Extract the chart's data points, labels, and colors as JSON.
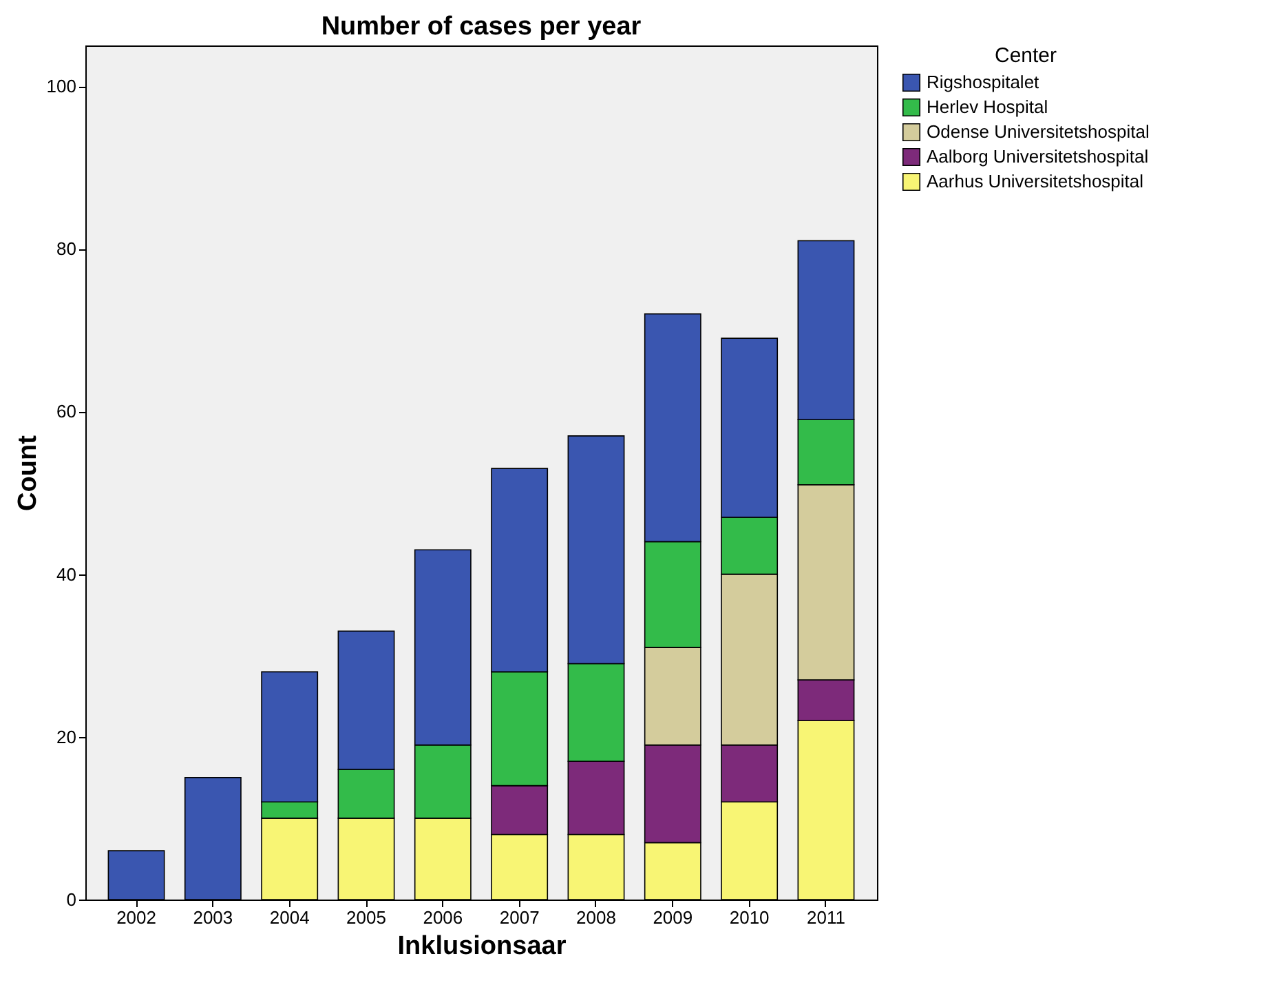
{
  "chart_data": {
    "type": "bar",
    "title": "Number of cases per year",
    "xlabel": "Inklusionsaar",
    "ylabel": "Count",
    "legend_title": "Center",
    "stacked": true,
    "legend": "top right",
    "grid": false,
    "categories": [
      "2002",
      "2003",
      "2004",
      "2005",
      "2006",
      "2007",
      "2008",
      "2009",
      "2010",
      "2011"
    ],
    "ylim": [
      0,
      105
    ],
    "yticks": [
      0,
      20,
      40,
      60,
      80,
      100
    ],
    "series": [
      {
        "name": "Aarhus Universitetshospital",
        "color": "#f8f574",
        "values": [
          0,
          0,
          10,
          10,
          10,
          8,
          8,
          7,
          12,
          22
        ]
      },
      {
        "name": "Aalborg Universitetshospital",
        "color": "#7d2a7a",
        "values": [
          0,
          0,
          0,
          0,
          0,
          6,
          9,
          12,
          7,
          5
        ]
      },
      {
        "name": "Odense Universitetshospital",
        "color": "#d4cc9c",
        "values": [
          0,
          0,
          0,
          0,
          0,
          0,
          0,
          12,
          21,
          24
        ]
      },
      {
        "name": "Herlev Hospital",
        "color": "#33bb4a",
        "values": [
          0,
          0,
          2,
          6,
          9,
          14,
          12,
          13,
          7,
          8
        ]
      },
      {
        "name": "Rigshospitalet",
        "color": "#3a56b0",
        "values": [
          6,
          15,
          16,
          17,
          24,
          25,
          28,
          28,
          22,
          22
        ]
      }
    ]
  }
}
